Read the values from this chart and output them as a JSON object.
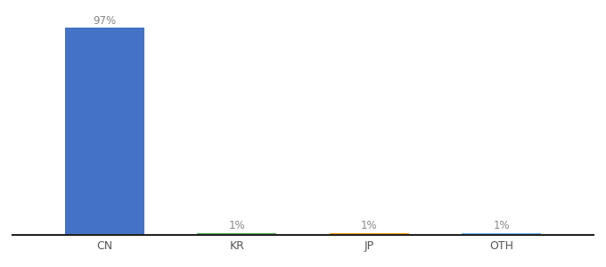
{
  "categories": [
    "CN",
    "KR",
    "JP",
    "OTH"
  ],
  "values": [
    97,
    1,
    1,
    1
  ],
  "bar_colors": [
    "#4472c4",
    "#4caf50",
    "#ff9800",
    "#64b5f6"
  ],
  "value_labels": [
    "97%",
    "1%",
    "1%",
    "1%"
  ],
  "label_color": "#888888",
  "background_color": "#ffffff",
  "ylim": [
    0,
    100
  ],
  "bar_width": 0.6,
  "figsize": [
    6.8,
    3.0
  ],
  "dpi": 100
}
